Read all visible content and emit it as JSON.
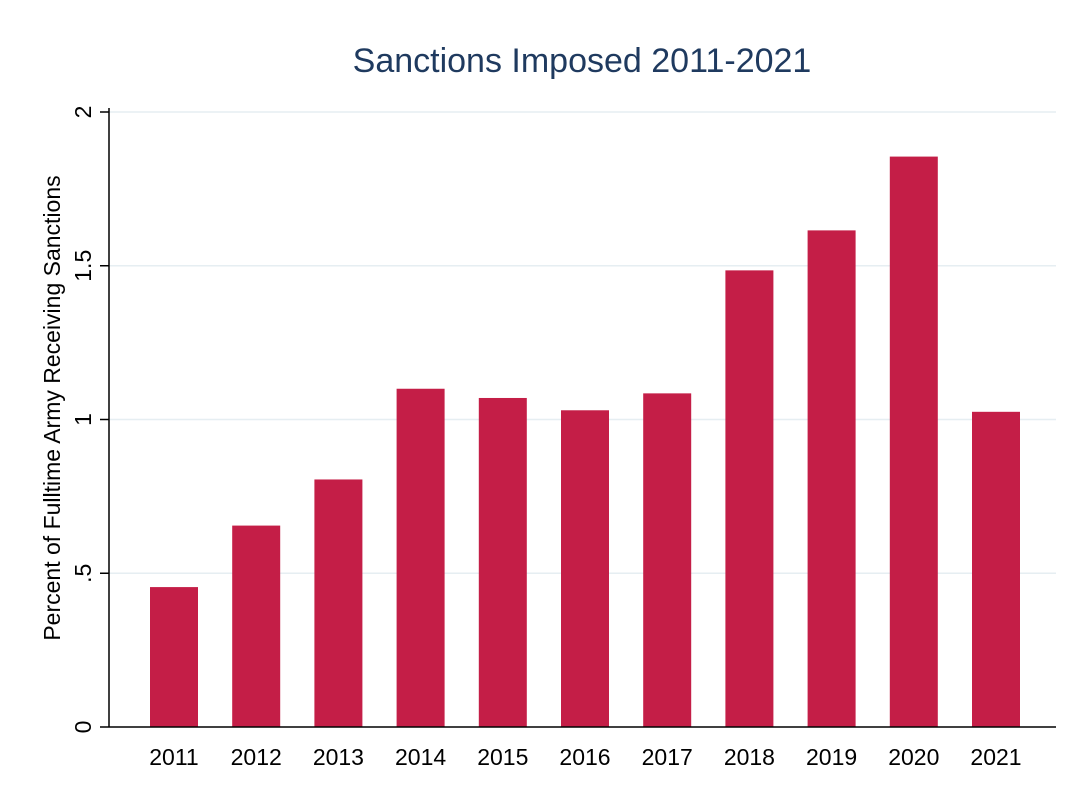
{
  "chart_data": {
    "type": "bar",
    "title": "Sanctions Imposed 2011-2021",
    "xlabel": "",
    "ylabel": "Percent of Fulltime Army Receiving Sanctions",
    "categories": [
      "2011",
      "2012",
      "2013",
      "2014",
      "2015",
      "2016",
      "2017",
      "2018",
      "2019",
      "2020",
      "2021"
    ],
    "values": [
      0.455,
      0.655,
      0.805,
      1.1,
      1.07,
      1.03,
      1.085,
      1.485,
      1.615,
      1.855,
      1.025
    ],
    "ylim": [
      0,
      2
    ],
    "yticks": [
      0,
      0.5,
      1,
      1.5,
      2
    ],
    "ytick_labels": [
      "0",
      ".5",
      "1",
      "1.5",
      "2"
    ],
    "bar_color": "#c41e47",
    "grid": true,
    "legend": "none"
  }
}
